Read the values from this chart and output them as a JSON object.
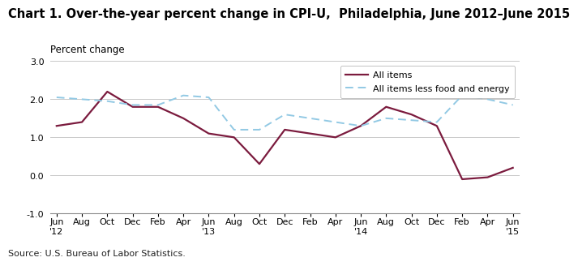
{
  "title": "Chart 1. Over-the-year percent change in CPI-U,  Philadelphia, June 2012–June 2015",
  "ylabel": "Percent change",
  "source": "Source: U.S. Bureau of Labor Statistics.",
  "xlim": [
    -0.5,
    36.5
  ],
  "ylim": [
    -1.0,
    3.0
  ],
  "yticks": [
    -1.0,
    0.0,
    1.0,
    2.0,
    3.0
  ],
  "x_tick_labels": [
    [
      "Jun\n'12",
      0
    ],
    [
      "Aug",
      2
    ],
    [
      "Oct",
      4
    ],
    [
      "Dec",
      6
    ],
    [
      "Feb",
      8
    ],
    [
      "Apr",
      10
    ],
    [
      "Jun\n'13",
      12
    ],
    [
      "Aug",
      14
    ],
    [
      "Oct",
      16
    ],
    [
      "Dec",
      18
    ],
    [
      "Feb",
      20
    ],
    [
      "Apr",
      22
    ],
    [
      "Jun\n'14",
      24
    ],
    [
      "Aug",
      26
    ],
    [
      "Oct",
      28
    ],
    [
      "Dec",
      30
    ],
    [
      "Feb",
      32
    ],
    [
      "Apr",
      34
    ],
    [
      "Jun\n'15",
      36
    ]
  ],
  "all_items": {
    "label": "All items",
    "color": "#7B1B3E",
    "linewidth": 1.6,
    "x": [
      0,
      2,
      4,
      6,
      8,
      10,
      12,
      14,
      16,
      18,
      20,
      22,
      24,
      26,
      28,
      30,
      32,
      34,
      36
    ],
    "y": [
      1.3,
      1.4,
      2.2,
      1.8,
      1.8,
      1.5,
      1.1,
      1.0,
      0.3,
      1.2,
      1.1,
      1.0,
      1.3,
      1.8,
      1.6,
      1.3,
      -0.1,
      -0.05,
      0.2
    ]
  },
  "all_items_less": {
    "label": "All items less food and energy",
    "color": "#92C9E4",
    "linewidth": 1.4,
    "linestyle": "dashed",
    "x": [
      0,
      2,
      4,
      6,
      8,
      10,
      12,
      14,
      16,
      18,
      20,
      22,
      24,
      26,
      28,
      30,
      32,
      34,
      36
    ],
    "y": [
      2.05,
      2.0,
      1.95,
      1.85,
      1.85,
      2.1,
      2.05,
      1.2,
      1.2,
      1.6,
      1.5,
      1.4,
      1.3,
      1.5,
      1.45,
      1.4,
      2.1,
      2.0,
      1.85
    ]
  },
  "background_color": "#ffffff",
  "grid_color": "#c8c8c8",
  "title_fontsize": 10.5,
  "axis_label_fontsize": 8.5,
  "tick_fontsize": 8,
  "source_fontsize": 8
}
